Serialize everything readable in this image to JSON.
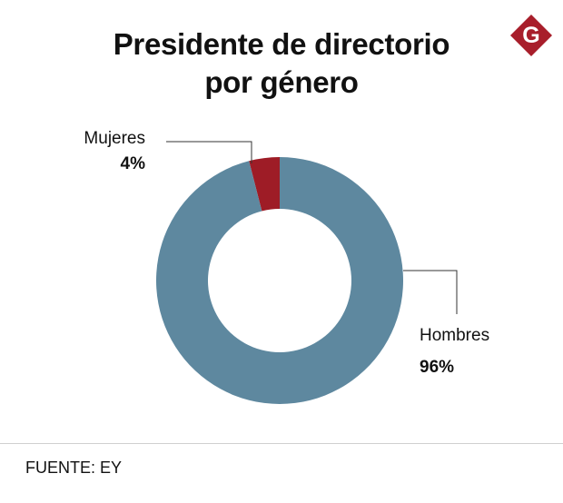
{
  "header": {
    "title_line1": "Presidente de directorio",
    "title_line2": "por género"
  },
  "logo": {
    "letter": "G",
    "color": "#a81e2b"
  },
  "chart_data": {
    "type": "pie",
    "variant": "donut",
    "title": "Presidente de directorio por género",
    "categories": [
      "Mujeres",
      "Hombres"
    ],
    "values": [
      4,
      96
    ],
    "labels": [
      "4%",
      "96%"
    ],
    "colors": [
      "#9e1c26",
      "#5e889f"
    ],
    "start": "12 o'clock",
    "direction": "counter-clockwise for Mujeres"
  },
  "footer": {
    "source": "FUENTE: EY"
  }
}
